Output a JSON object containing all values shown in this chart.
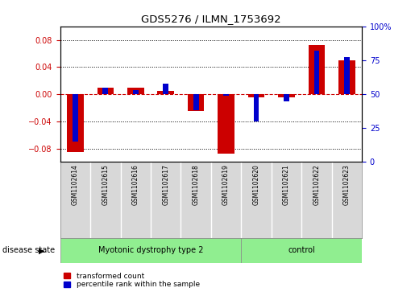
{
  "title": "GDS5276 / ILMN_1753692",
  "samples": [
    "GSM1102614",
    "GSM1102615",
    "GSM1102616",
    "GSM1102617",
    "GSM1102618",
    "GSM1102619",
    "GSM1102620",
    "GSM1102621",
    "GSM1102622",
    "GSM1102623"
  ],
  "red_values": [
    -0.085,
    0.01,
    0.01,
    0.005,
    -0.025,
    -0.088,
    -0.005,
    -0.005,
    0.072,
    0.05
  ],
  "blue_values_raw": [
    15,
    55,
    53,
    58,
    38,
    49,
    30,
    45,
    82,
    77
  ],
  "groups": [
    {
      "label": "Myotonic dystrophy type 2",
      "start": 0,
      "end": 6,
      "color": "#90ee90"
    },
    {
      "label": "control",
      "start": 6,
      "end": 10,
      "color": "#90ee90"
    }
  ],
  "ylim": [
    -0.1,
    0.1
  ],
  "yticks_left": [
    -0.08,
    -0.04,
    0.0,
    0.04,
    0.08
  ],
  "yticks_right": [
    0,
    25,
    50,
    75,
    100
  ],
  "y_right_map": {
    "ymin": -0.1,
    "ymax": 0.1,
    "rmin": 0,
    "rmax": 100
  },
  "red_color": "#cc0000",
  "blue_color": "#0000cc",
  "red_bar_width": 0.55,
  "blue_bar_width": 0.18,
  "zero_line_color": "#cc0000",
  "grid_color": "#000000",
  "sample_box_color": "#d8d8d8",
  "legend_red": "transformed count",
  "legend_blue": "percentile rank within the sample",
  "disease_state_label": "disease state"
}
